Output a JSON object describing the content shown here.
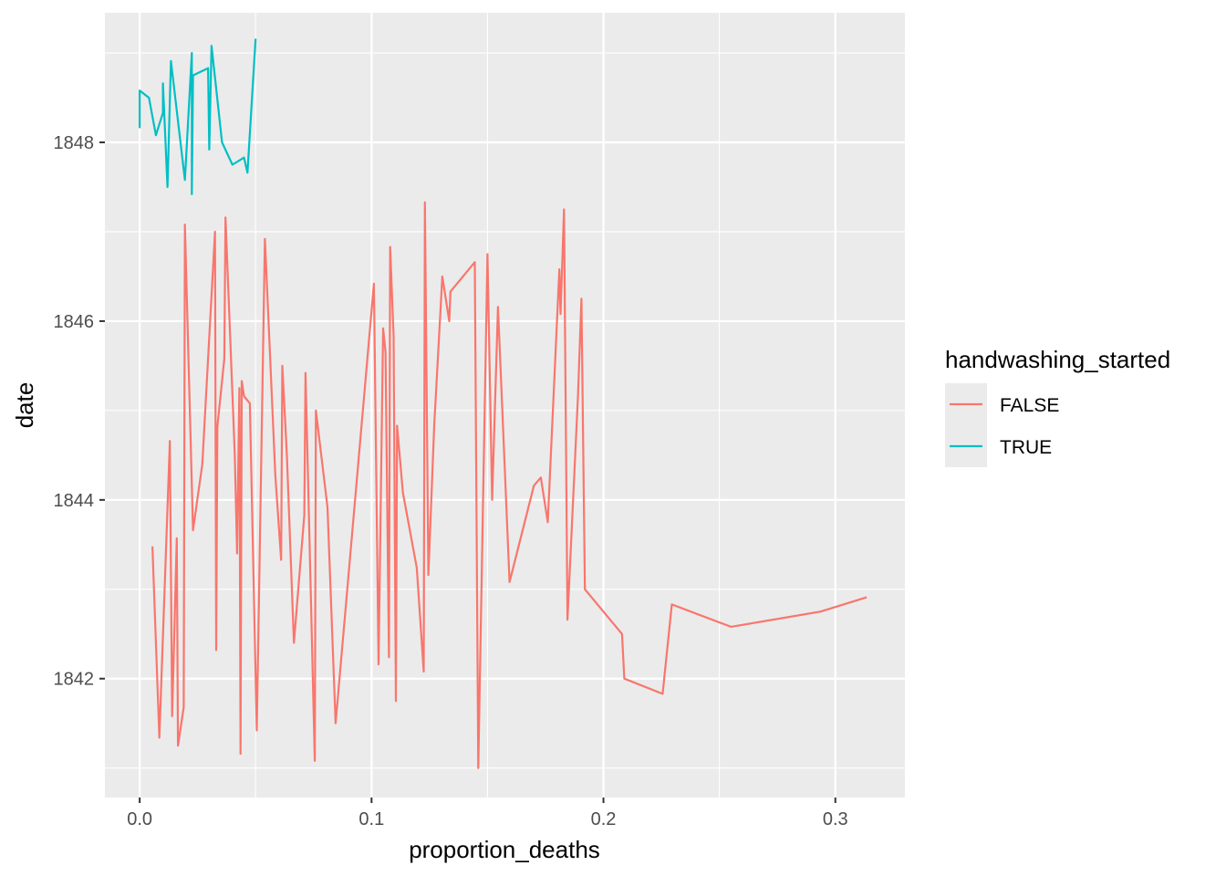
{
  "chart_data": {
    "type": "line",
    "xlabel": "proportion_deaths",
    "ylabel": "date",
    "xlim": [
      -0.015,
      0.33
    ],
    "ylim": [
      1840.67,
      1849.45
    ],
    "x_ticks": [
      0.0,
      0.1,
      0.2,
      0.3
    ],
    "x_tick_labels": [
      "0.0",
      "0.1",
      "0.2",
      "0.3"
    ],
    "y_ticks": [
      1842,
      1844,
      1846,
      1848
    ],
    "y_tick_labels": [
      "1842",
      "1844",
      "1846",
      "1848"
    ],
    "grid": true,
    "legend": {
      "title": "handwashing_started",
      "position": "right"
    },
    "series": [
      {
        "name": "FALSE",
        "color": "#F8766D",
        "points": [
          [
            0.0055,
            1843.48
          ],
          [
            0.0085,
            1841.34
          ],
          [
            0.013,
            1844.66
          ],
          [
            0.014,
            1841.58
          ],
          [
            0.016,
            1843.57
          ],
          [
            0.0165,
            1841.25
          ],
          [
            0.019,
            1841.68
          ],
          [
            0.0195,
            1847.08
          ],
          [
            0.023,
            1843.66
          ],
          [
            0.027,
            1844.4
          ],
          [
            0.0325,
            1847.0
          ],
          [
            0.033,
            1842.32
          ],
          [
            0.0335,
            1844.82
          ],
          [
            0.0365,
            1845.58
          ],
          [
            0.037,
            1847.16
          ],
          [
            0.041,
            1844.5
          ],
          [
            0.042,
            1843.4
          ],
          [
            0.043,
            1845.25
          ],
          [
            0.0435,
            1841.16
          ],
          [
            0.044,
            1845.33
          ],
          [
            0.045,
            1845.16
          ],
          [
            0.0475,
            1845.08
          ],
          [
            0.0505,
            1841.42
          ],
          [
            0.054,
            1846.92
          ],
          [
            0.0585,
            1844.28
          ],
          [
            0.061,
            1843.33
          ],
          [
            0.0615,
            1845.5
          ],
          [
            0.0635,
            1844.5
          ],
          [
            0.0665,
            1842.4
          ],
          [
            0.071,
            1843.83
          ],
          [
            0.0715,
            1845.42
          ],
          [
            0.0755,
            1841.08
          ],
          [
            0.076,
            1845.0
          ],
          [
            0.081,
            1843.92
          ],
          [
            0.0845,
            1841.5
          ],
          [
            0.101,
            1846.42
          ],
          [
            0.103,
            1842.16
          ],
          [
            0.105,
            1845.92
          ],
          [
            0.106,
            1845.66
          ],
          [
            0.1075,
            1842.24
          ],
          [
            0.108,
            1846.83
          ],
          [
            0.1095,
            1845.83
          ],
          [
            0.1105,
            1841.75
          ],
          [
            0.111,
            1844.83
          ],
          [
            0.1135,
            1844.08
          ],
          [
            0.1195,
            1843.24
          ],
          [
            0.1225,
            1842.08
          ],
          [
            0.123,
            1847.33
          ],
          [
            0.1245,
            1843.16
          ],
          [
            0.127,
            1844.83
          ],
          [
            0.1305,
            1846.5
          ],
          [
            0.1335,
            1846.0
          ],
          [
            0.134,
            1846.33
          ],
          [
            0.1445,
            1846.66
          ],
          [
            0.146,
            1841.0
          ],
          [
            0.15,
            1846.75
          ],
          [
            0.152,
            1844.0
          ],
          [
            0.1545,
            1846.16
          ],
          [
            0.1595,
            1843.08
          ],
          [
            0.17,
            1844.16
          ],
          [
            0.173,
            1844.25
          ],
          [
            0.176,
            1843.75
          ],
          [
            0.181,
            1846.58
          ],
          [
            0.1815,
            1846.08
          ],
          [
            0.183,
            1847.25
          ],
          [
            0.1845,
            1842.66
          ],
          [
            0.189,
            1845.16
          ],
          [
            0.1905,
            1846.25
          ],
          [
            0.192,
            1843.0
          ],
          [
            0.208,
            1842.5
          ],
          [
            0.209,
            1842.0
          ],
          [
            0.2255,
            1841.83
          ],
          [
            0.2295,
            1842.83
          ],
          [
            0.255,
            1842.58
          ],
          [
            0.2935,
            1842.75
          ],
          [
            0.3135,
            1842.91
          ]
        ]
      },
      {
        "name": "TRUE",
        "color": "#00BFC4",
        "points": [
          [
            0.0,
            1848.16
          ],
          [
            0.0,
            1848.58
          ],
          [
            0.004,
            1848.5
          ],
          [
            0.007,
            1848.08
          ],
          [
            0.01,
            1848.33
          ],
          [
            0.01,
            1848.66
          ],
          [
            0.012,
            1847.5
          ],
          [
            0.0135,
            1848.91
          ],
          [
            0.0195,
            1847.58
          ],
          [
            0.0225,
            1849.0
          ],
          [
            0.0225,
            1847.42
          ],
          [
            0.023,
            1848.75
          ],
          [
            0.0295,
            1848.83
          ],
          [
            0.03,
            1847.92
          ],
          [
            0.031,
            1849.08
          ],
          [
            0.0355,
            1848.0
          ],
          [
            0.04,
            1847.75
          ],
          [
            0.045,
            1847.83
          ],
          [
            0.0465,
            1847.66
          ],
          [
            0.05,
            1849.16
          ]
        ]
      }
    ]
  }
}
